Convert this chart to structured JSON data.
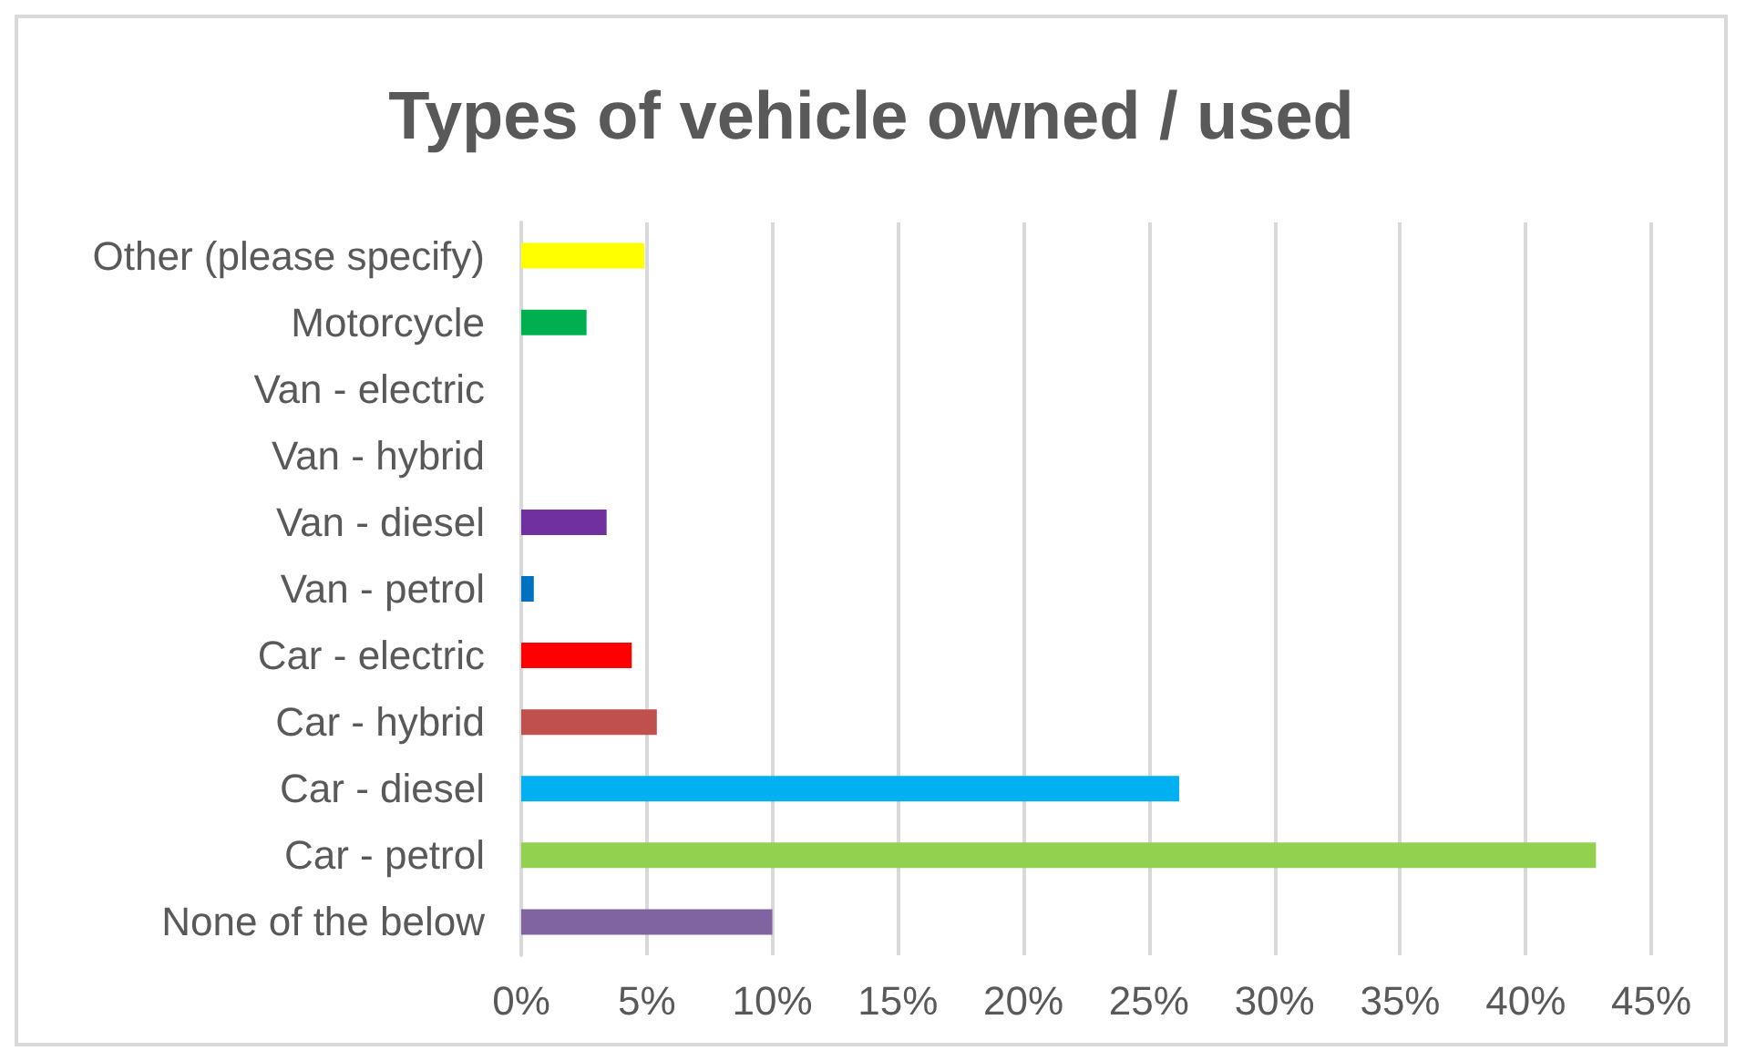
{
  "chart_data": {
    "type": "bar",
    "orientation": "horizontal",
    "title": "Types of vehicle owned / used",
    "categories": [
      "Other (please specify)",
      "Motorcycle",
      "Van - electric",
      "Van - hybrid",
      "Van - diesel",
      "Van - petrol",
      "Car - electric",
      "Car - hybrid",
      "Car - diesel",
      "Car - petrol",
      "None of the below"
    ],
    "values": [
      4.9,
      2.6,
      0,
      0,
      3.4,
      0.5,
      4.4,
      5.4,
      26.2,
      42.8,
      10.0
    ],
    "colors": [
      "#ffff00",
      "#00b050",
      "#4472c4",
      "#a5a5a5",
      "#7030a0",
      "#0070c0",
      "#ff0000",
      "#c0504d",
      "#00b0f0",
      "#92d050",
      "#8064a2"
    ],
    "xlim": [
      0,
      45
    ],
    "xticks": [
      {
        "value": 0,
        "label": "0%"
      },
      {
        "value": 5,
        "label": "5%"
      },
      {
        "value": 10,
        "label": "10%"
      },
      {
        "value": 15,
        "label": "15%"
      },
      {
        "value": 20,
        "label": "20%"
      },
      {
        "value": 25,
        "label": "25%"
      },
      {
        "value": 30,
        "label": "30%"
      },
      {
        "value": 35,
        "label": "35%"
      },
      {
        "value": 40,
        "label": "40%"
      },
      {
        "value": 45,
        "label": "45%"
      }
    ],
    "grid": "x"
  }
}
